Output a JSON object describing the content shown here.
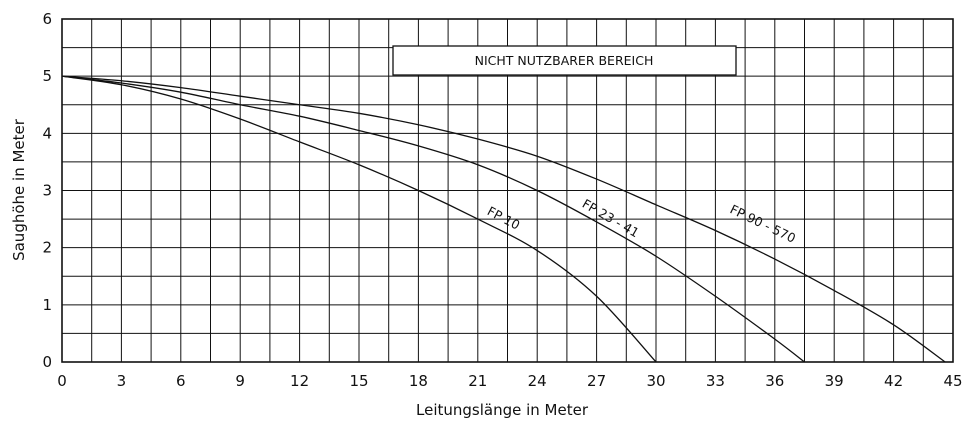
{
  "chart_data": {
    "type": "line",
    "title": "",
    "xlabel": "Leitungslänge in Meter",
    "ylabel": "Saughöhe in Meter",
    "xlim": [
      0,
      45
    ],
    "ylim": [
      0,
      6
    ],
    "x_ticks": [
      "0",
      "3",
      "6",
      "9",
      "12",
      "15",
      "18",
      "21",
      "24",
      "27",
      "30",
      "33",
      "36",
      "39",
      "42",
      "45"
    ],
    "y_ticks": [
      "0",
      "1",
      "2",
      "3",
      "4",
      "5",
      "6"
    ],
    "grid": true,
    "annotation": "NICHT NUTZBARER BEREICH",
    "series": [
      {
        "name": "FP 10",
        "points": [
          [
            0,
            5.0
          ],
          [
            3,
            4.85
          ],
          [
            6,
            4.6
          ],
          [
            9,
            4.25
          ],
          [
            12,
            3.85
          ],
          [
            15,
            3.45
          ],
          [
            18,
            3.0
          ],
          [
            21,
            2.5
          ],
          [
            24,
            1.95
          ],
          [
            27,
            1.15
          ],
          [
            30,
            0.0
          ]
        ]
      },
      {
        "name": "FP 23 - 41",
        "points": [
          [
            0,
            5.0
          ],
          [
            3,
            4.88
          ],
          [
            6,
            4.72
          ],
          [
            9,
            4.5
          ],
          [
            12,
            4.3
          ],
          [
            15,
            4.05
          ],
          [
            18,
            3.78
          ],
          [
            21,
            3.45
          ],
          [
            24,
            3.0
          ],
          [
            27,
            2.45
          ],
          [
            30,
            1.85
          ],
          [
            33,
            1.15
          ],
          [
            36,
            0.4
          ],
          [
            37.5,
            0.0
          ]
        ]
      },
      {
        "name": "FP 90 - 570",
        "points": [
          [
            0,
            5.0
          ],
          [
            3,
            4.92
          ],
          [
            6,
            4.8
          ],
          [
            9,
            4.65
          ],
          [
            12,
            4.5
          ],
          [
            15,
            4.35
          ],
          [
            18,
            4.15
          ],
          [
            21,
            3.9
          ],
          [
            24,
            3.6
          ],
          [
            27,
            3.2
          ],
          [
            30,
            2.75
          ],
          [
            33,
            2.3
          ],
          [
            36,
            1.8
          ],
          [
            39,
            1.25
          ],
          [
            42,
            0.65
          ],
          [
            44.6,
            0.0
          ]
        ]
      }
    ]
  }
}
